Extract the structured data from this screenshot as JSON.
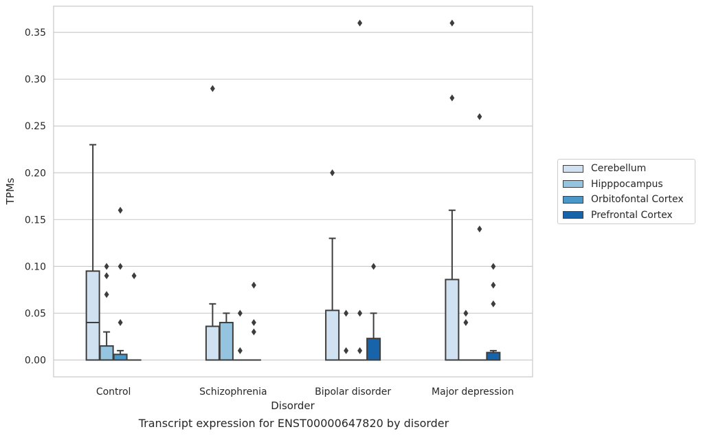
{
  "chart_data": {
    "type": "box",
    "title": "",
    "caption": "Transcript expression for ENST00000647820 by disorder",
    "xlabel": "Disorder",
    "ylabel": "TPMs",
    "ylim": [
      -0.018,
      0.378
    ],
    "yticks": [
      "0.00",
      "0.05",
      "0.10",
      "0.15",
      "0.20",
      "0.25",
      "0.30",
      "0.35"
    ],
    "ytick_values": [
      0,
      0.05,
      0.1,
      0.15,
      0.2,
      0.25,
      0.3,
      0.35
    ],
    "grid": "horizontal",
    "legend_position": "right",
    "categories": [
      "Control",
      "Schizophrenia",
      "Bipolar disorder",
      "Major depression"
    ],
    "series": [
      {
        "name": "Cerebellum",
        "color": "#d0e1f2",
        "boxes": [
          {
            "q1": 0,
            "median": 0.04,
            "q3": 0.095,
            "whisker_low": 0,
            "whisker_high": 0.23,
            "outliers": []
          },
          {
            "q1": 0,
            "median": 0.0,
            "q3": 0.036,
            "whisker_low": 0,
            "whisker_high": 0.06,
            "outliers": [
              0.29
            ]
          },
          {
            "q1": 0,
            "median": 0.0,
            "q3": 0.053,
            "whisker_low": 0,
            "whisker_high": 0.13,
            "outliers": [
              0.2
            ]
          },
          {
            "q1": 0,
            "median": 0.0,
            "q3": 0.086,
            "whisker_low": 0,
            "whisker_high": 0.16,
            "outliers": [
              0.36,
              0.28
            ]
          }
        ]
      },
      {
        "name": "Hipppocampus",
        "color": "#94c4df",
        "boxes": [
          {
            "q1": 0,
            "median": 0.0,
            "q3": 0.015,
            "whisker_low": 0,
            "whisker_high": 0.03,
            "outliers": [
              0.1,
              0.09,
              0.07
            ]
          },
          {
            "q1": 0,
            "median": 0.0,
            "q3": 0.04,
            "whisker_low": 0,
            "whisker_high": 0.05,
            "outliers": []
          },
          {
            "q1": 0,
            "median": 0.0,
            "q3": 0.0,
            "whisker_low": 0,
            "whisker_high": 0.0,
            "outliers": [
              0.05,
              0.01
            ]
          },
          {
            "q1": 0,
            "median": 0.0,
            "q3": 0.0,
            "whisker_low": 0,
            "whisker_high": 0.0,
            "outliers": [
              0.05,
              0.04
            ]
          }
        ]
      },
      {
        "name": "Orbitofontal Cortex",
        "color": "#4a98c9",
        "boxes": [
          {
            "q1": 0,
            "median": 0.0,
            "q3": 0.006,
            "whisker_low": 0,
            "whisker_high": 0.01,
            "outliers": [
              0.16,
              0.1,
              0.04
            ]
          },
          {
            "q1": 0,
            "median": 0.0,
            "q3": 0.0,
            "whisker_low": 0,
            "whisker_high": 0.0,
            "outliers": [
              0.05,
              0.01
            ]
          },
          {
            "q1": 0,
            "median": 0.0,
            "q3": 0.0,
            "whisker_low": 0,
            "whisker_high": 0.0,
            "outliers": [
              0.36,
              0.05,
              0.01
            ]
          },
          {
            "q1": 0,
            "median": 0.0,
            "q3": 0.0,
            "whisker_low": 0,
            "whisker_high": 0.0,
            "outliers": [
              0.26,
              0.14
            ]
          }
        ]
      },
      {
        "name": "Prefrontal Cortex",
        "color": "#1764ab",
        "boxes": [
          {
            "q1": 0,
            "median": 0.0,
            "q3": 0.0,
            "whisker_low": 0,
            "whisker_high": 0.0,
            "outliers": [
              0.09
            ]
          },
          {
            "q1": 0,
            "median": 0.0,
            "q3": 0.0,
            "whisker_low": 0,
            "whisker_high": 0.0,
            "outliers": [
              0.08,
              0.04,
              0.03
            ]
          },
          {
            "q1": 0,
            "median": 0.0,
            "q3": 0.023,
            "whisker_low": 0,
            "whisker_high": 0.05,
            "outliers": [
              0.1
            ]
          },
          {
            "q1": 0,
            "median": 0.0,
            "q3": 0.008,
            "whisker_low": 0,
            "whisker_high": 0.01,
            "outliers": [
              0.1,
              0.08,
              0.06
            ]
          }
        ]
      }
    ]
  }
}
